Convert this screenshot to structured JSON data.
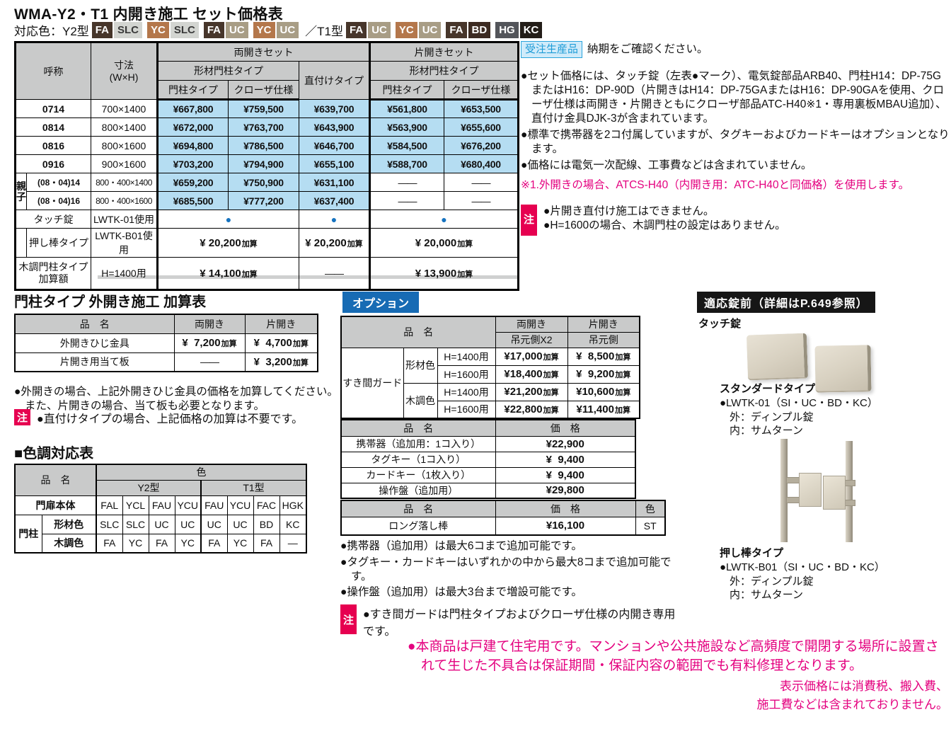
{
  "title": "WMA-Y2・T1 内開き施工 セット価格表",
  "colors_line": {
    "prefix": "対応色：Y2型",
    "separator": "／T1型",
    "y2": [
      {
        "code": "FA",
        "bg": "#47362b",
        "fg": "#ffffff"
      },
      {
        "code": "SLC",
        "bg": "#d3d5d1",
        "fg": "#3a3a3a"
      },
      {
        "code": "YC",
        "bg": "#b4774b",
        "fg": "#ffffff"
      },
      {
        "code": "SLC",
        "bg": "#d3d5d1",
        "fg": "#3a3a3a"
      },
      {
        "code": "FA",
        "bg": "#47362b",
        "fg": "#ffffff"
      },
      {
        "code": "UC",
        "bg": "#a89d85",
        "fg": "#ffffff"
      },
      {
        "code": "YC",
        "bg": "#b4774b",
        "fg": "#ffffff"
      },
      {
        "code": "UC",
        "bg": "#a89d85",
        "fg": "#ffffff"
      }
    ],
    "t1": [
      {
        "code": "FA",
        "bg": "#47362b",
        "fg": "#ffffff"
      },
      {
        "code": "UC",
        "bg": "#a89d85",
        "fg": "#ffffff"
      },
      {
        "code": "YC",
        "bg": "#b4774b",
        "fg": "#ffffff"
      },
      {
        "code": "UC",
        "bg": "#a89d85",
        "fg": "#ffffff"
      },
      {
        "code": "FA",
        "bg": "#47362b",
        "fg": "#ffffff"
      },
      {
        "code": "BD",
        "bg": "#3c2b22",
        "fg": "#ffffff"
      },
      {
        "code": "HG",
        "bg": "#53555a",
        "fg": "#ffffff"
      },
      {
        "code": "KC",
        "bg": "#231d18",
        "fg": "#ffffff"
      }
    ]
  },
  "main_table": {
    "h_name": "呼称",
    "h_size1": "寸法",
    "h_size2": "(W×H)",
    "h_double": "両開きセット",
    "h_single": "片開きセット",
    "h_keizai": "形材門柱タイプ",
    "h_chokuzuke": "直付けタイプ",
    "h_post": "門柱タイプ",
    "h_closer": "クローザ仕様",
    "suffix": "加算",
    "sizes": [
      {
        "name": "0714",
        "dim": "700×1400",
        "p1": "¥667,800",
        "p2": "¥759,500",
        "p3": "¥639,700",
        "p4": "¥561,800",
        "p5": "¥653,500"
      },
      {
        "name": "0814",
        "dim": "800×1400",
        "p1": "¥672,000",
        "p2": "¥763,700",
        "p3": "¥643,900",
        "p4": "¥563,900",
        "p5": "¥655,600"
      },
      {
        "name": "0816",
        "dim": "800×1600",
        "p1": "¥694,800",
        "p2": "¥786,500",
        "p3": "¥646,700",
        "p4": "¥584,500",
        "p5": "¥676,200"
      },
      {
        "name": "0916",
        "dim": "900×1600",
        "p1": "¥703,200",
        "p2": "¥794,900",
        "p3": "¥655,100",
        "p4": "¥588,700",
        "p5": "¥680,400"
      }
    ],
    "oyako": {
      "label": "親子",
      "rows": [
        {
          "name": "(08・04)14",
          "dim": "800・400×1400",
          "p1": "¥659,200",
          "p2": "¥750,900",
          "p3": "¥631,100",
          "p4": "――",
          "p5": "――"
        },
        {
          "name": "(08・04)16",
          "dim": "800・400×1600",
          "p1": "¥685,500",
          "p2": "¥777,200",
          "p3": "¥637,400",
          "p4": "――",
          "p5": "――"
        }
      ]
    },
    "touch": {
      "label": "タッチ錠",
      "use": "LWTK-01使用",
      "dot": "●"
    },
    "pushbar": {
      "label": "押し棒タイプ",
      "use": "LWTK-B01使用",
      "p_double": "¥ 20,200",
      "p_choku": "¥ 20,200",
      "p_single": "¥ 20,000"
    },
    "wood": {
      "label": "木調門柱タイプ加算額",
      "use": "H=1400用",
      "p_double": "¥ 14,100",
      "p_single": "¥ 13,900",
      "dash": "――"
    }
  },
  "right_notes": {
    "order_badge": "受注生産品",
    "order_text": "納期をご確認ください。",
    "bullets": [
      "●セット価格には、タッチ錠（左表●マーク）、電気錠部品ARB40、門柱H14：DP-75GまたはH16：DP-90D（片開きはH14：DP-75GAまたはH16：DP-90GAを使用、クローザ仕様は両開き・片開きともにクローザ部品ATC-H40※1・専用裏板MBAU追加）、直付け金具DJK-3が含まれています。",
      "●標準で携帯器を2コ付属していますが、タグキーおよびカードキーはオプションとなります。",
      "●価格には電気一次配線、工事費などは含まれていません。"
    ],
    "note_pink": "※1.外開きの場合、ATCS-H40（内開き用：ATC-H40と同価格）を使用します。",
    "chu_badge": "注",
    "chu_items": [
      "●片開き直付け施工はできません。",
      "●H=1600の場合、木調門柱の設定はありません。"
    ]
  },
  "sotobiraki": {
    "heading": "門柱タイプ 外開き施工 加算表",
    "h_name": "品　名",
    "h_double": "両開き",
    "h_single": "片開き",
    "suffix": "加算",
    "rows": [
      {
        "name": "外開きひじ金具",
        "d": "¥  7,200",
        "s": "¥  4,700"
      },
      {
        "name": "片開き用当て板",
        "d": "――",
        "s": "¥  3,200"
      }
    ],
    "note": "●外開きの場合、上記外開きひじ金具の価格を加算してください。また、片開きの場合、当て板も必要となります。",
    "chu_badge": "注",
    "chu": "●直付けタイプの場合、上記価格の加算は不要です。"
  },
  "shikichou": {
    "heading": "■色調対応表",
    "h_name": "品　名",
    "h_color": "色",
    "h_y2": "Y2型",
    "h_t1": "T1型",
    "row1_label": "門扉本体",
    "row1": [
      "FAL",
      "YCL",
      "FAU",
      "YCU",
      "FAU",
      "YCU",
      "FAC",
      "HGK"
    ],
    "row23_label": "門柱",
    "row2_label": "形材色",
    "row2": [
      "SLC",
      "SLC",
      "UC",
      "UC",
      "UC",
      "UC",
      "BD",
      "KC"
    ],
    "row3_label": "木調色",
    "row3": [
      "FA",
      "YC",
      "FA",
      "YC",
      "FA",
      "YC",
      "FA",
      "―"
    ]
  },
  "options": {
    "badge": "オプション",
    "suffix": "加算",
    "table1": {
      "h_name": "品　名",
      "h_double": "両開き",
      "h_double_sub": "吊元側X2",
      "h_single": "片開き",
      "h_single_sub": "吊元側",
      "group_label": "すき間ガード",
      "mat_label": "形材色",
      "wood_label": "木調色",
      "rows": [
        {
          "h": "H=1400用",
          "d": "¥17,000",
          "s": "¥  8,500"
        },
        {
          "h": "H=1600用",
          "d": "¥18,400",
          "s": "¥  9,200"
        },
        {
          "h": "H=1400用",
          "d": "¥21,200",
          "s": "¥10,600"
        },
        {
          "h": "H=1600用",
          "d": "¥22,800",
          "s": "¥11,400"
        }
      ]
    },
    "table2": {
      "h_name": "品　名",
      "h_price": "価　格",
      "rows": [
        {
          "name": "携帯器（追加用：1コ入り）",
          "price": "¥22,900"
        },
        {
          "name": "タグキー（1コ入り）",
          "price": "¥  9,400"
        },
        {
          "name": "カードキー（1枚入り）",
          "price": "¥  9,400"
        },
        {
          "name": "操作盤（追加用）",
          "price": "¥29,800"
        }
      ]
    },
    "table3": {
      "h_name": "品　名",
      "h_price": "価　格",
      "h_color": "色",
      "rows": [
        {
          "name": "ロング落し棒",
          "price": "¥16,100",
          "color": "ST"
        }
      ]
    },
    "notes": [
      "●携帯器（追加用）は最大6コまで追加可能です。",
      "●タグキー・カードキーはいずれかの中から最大8コまで追加可能です。",
      "●操作盤（追加用）は最大3台まで増設可能です。"
    ],
    "chu_badge": "注",
    "chu": "●すき間ガードは門柱タイプおよびクローザ仕様の内開き専用です。"
  },
  "locks": {
    "header": "適応錠前（詳細はP.649参照）",
    "touch_label": "タッチ錠",
    "standard": {
      "title": "スタンダードタイプ",
      "model": "●LWTK-01（SI・UC・BD・KC）",
      "outer": "外：ディンプル錠",
      "inner": "内：サムターン"
    },
    "pushbar": {
      "title": "押し棒タイプ",
      "model": "●LWTK-B01（SI・UC・BD・KC）",
      "outer": "外：ディンプル錠",
      "inner": "内：サムターン"
    }
  },
  "bottom": {
    "warning": "●本商品は戸建て住宅用です。マンションや公共施設など高頻度で開閉する場所に設置されて生じた不具合は保証期間・保証内容の範囲でも有料修理となります。",
    "tax1": "表示価格には消費税、搬入費、",
    "tax2": "施工費などは含まれておりません。"
  }
}
